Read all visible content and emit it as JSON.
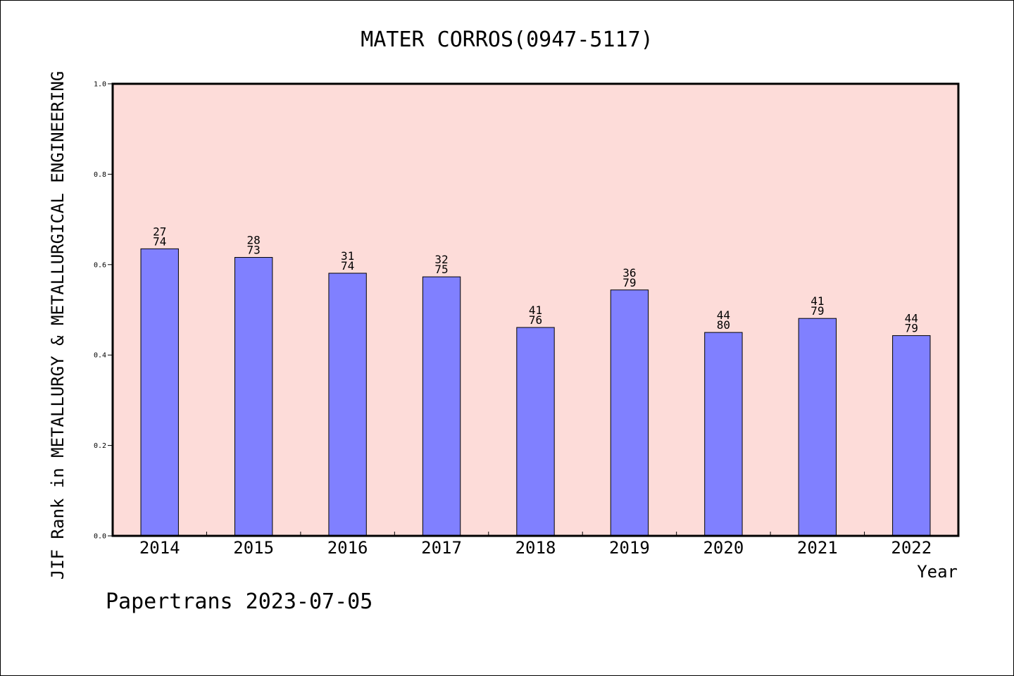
{
  "chart_data": {
    "type": "bar",
    "title": "MATER CORROS(0947-5117)",
    "ylabel": "JIF Rank in METALLURGY & METALLURGICAL ENGINEERING",
    "xlabel": "Year",
    "categories": [
      "2014",
      "2015",
      "2016",
      "2017",
      "2018",
      "2019",
      "2020",
      "2021",
      "2022"
    ],
    "values": [
      0.635,
      0.616,
      0.581,
      0.573,
      0.461,
      0.544,
      0.45,
      0.481,
      0.443
    ],
    "rank": [
      "27",
      "28",
      "31",
      "32",
      "41",
      "36",
      "44",
      "41",
      "44"
    ],
    "total": [
      "74",
      "73",
      "74",
      "75",
      "76",
      "79",
      "80",
      "79",
      "79"
    ],
    "ylim": [
      0,
      1.0
    ],
    "yticks": [
      "0.0",
      "0.2",
      "0.4",
      "0.6",
      "0.8",
      "1.0"
    ],
    "grid": false,
    "colors": {
      "plot_bg": "#fddcd9",
      "bar": "#8080ff",
      "bar_edge": "#000000"
    }
  },
  "footer": {
    "credit": "Papertrans 2023-07-05"
  }
}
